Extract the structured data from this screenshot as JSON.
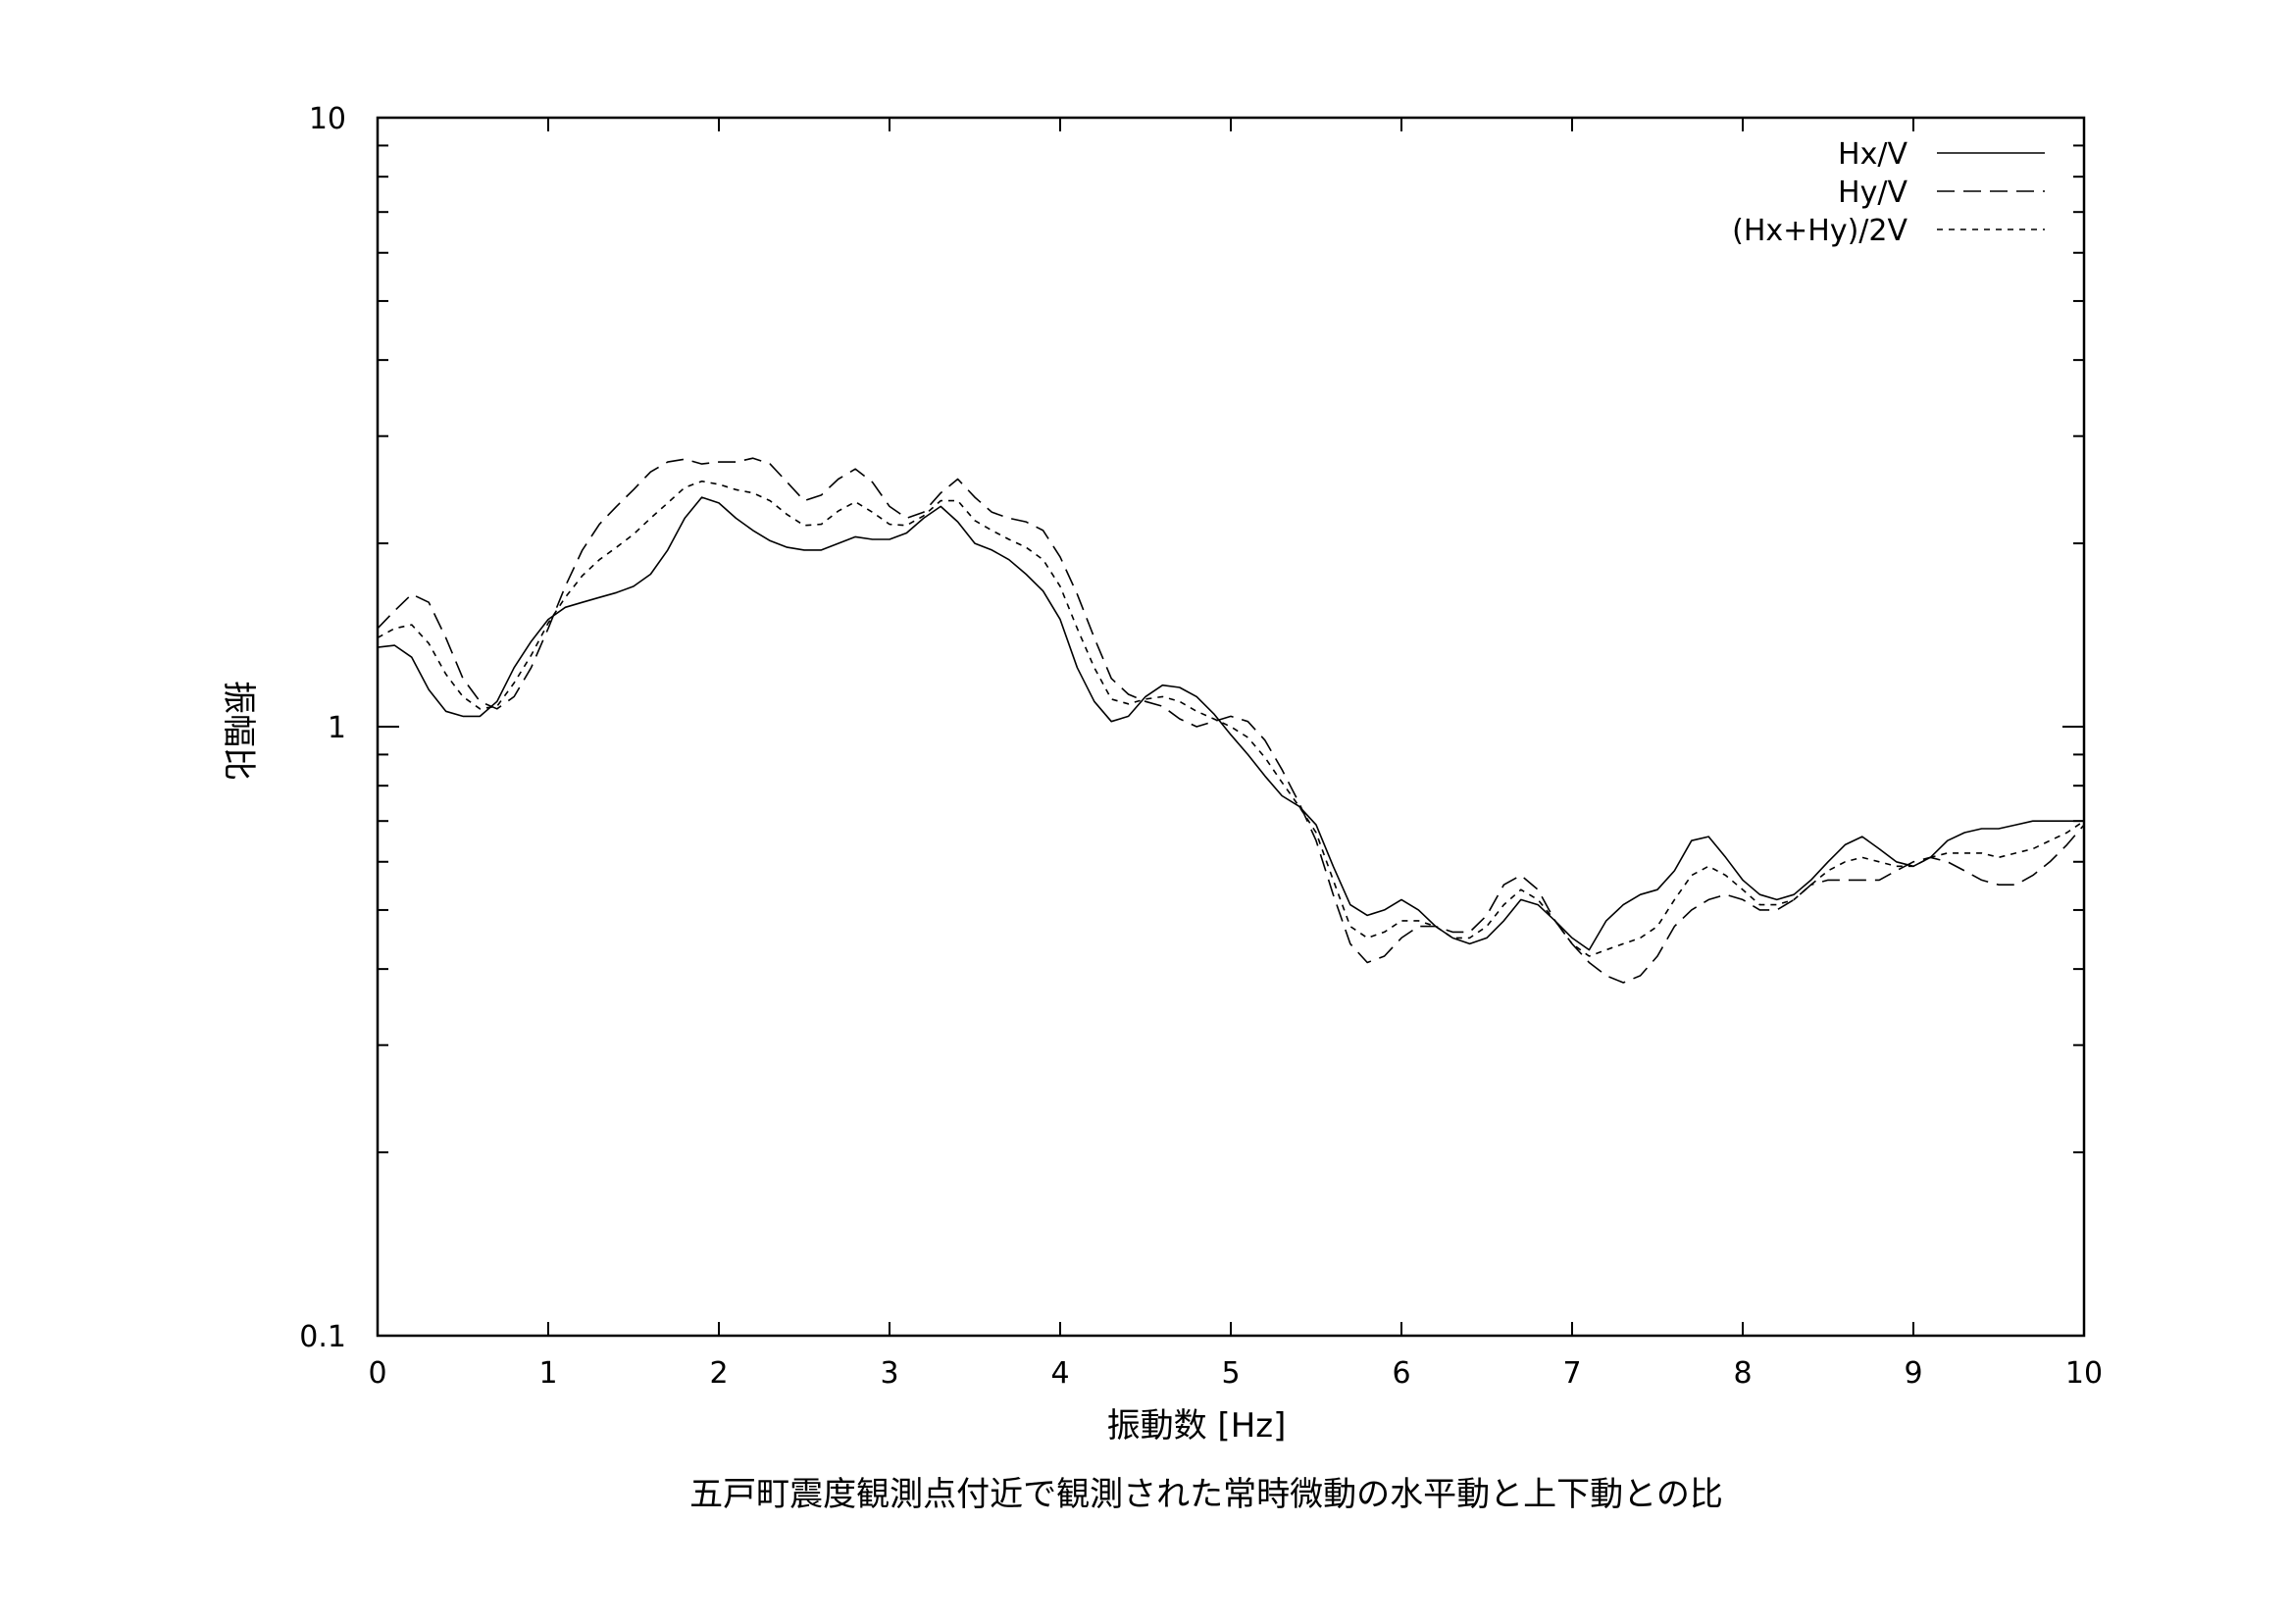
{
  "chart_data": {
    "type": "line",
    "title": "",
    "caption": "五戸町震度観測点付近で観測された常時微動の水平動と上下動との比",
    "xlabel": "振動数 [Hz]",
    "ylabel": "振幅比",
    "xlim": [
      0,
      10
    ],
    "ylim": [
      0.1,
      10
    ],
    "yscale": "log",
    "grid": false,
    "legend_position": "top-right",
    "x_ticks": [
      "0",
      "1",
      "2",
      "3",
      "4",
      "5",
      "6",
      "7",
      "8",
      "9",
      "10"
    ],
    "y_ticks": [
      "0.1",
      "1",
      "10"
    ],
    "x": [
      0.0,
      0.1,
      0.2,
      0.3,
      0.4,
      0.5,
      0.6,
      0.7,
      0.8,
      0.9,
      1.0,
      1.1,
      1.2,
      1.3,
      1.4,
      1.5,
      1.6,
      1.7,
      1.8,
      1.9,
      2.0,
      2.1,
      2.2,
      2.3,
      2.4,
      2.5,
      2.6,
      2.7,
      2.8,
      2.9,
      3.0,
      3.1,
      3.2,
      3.3,
      3.4,
      3.5,
      3.6,
      3.7,
      3.8,
      3.9,
      4.0,
      4.1,
      4.2,
      4.3,
      4.4,
      4.5,
      4.6,
      4.7,
      4.8,
      4.9,
      5.0,
      5.1,
      5.2,
      5.3,
      5.4,
      5.5,
      5.6,
      5.7,
      5.8,
      5.9,
      6.0,
      6.1,
      6.2,
      6.3,
      6.4,
      6.5,
      6.6,
      6.7,
      6.8,
      6.9,
      7.0,
      7.1,
      7.2,
      7.3,
      7.4,
      7.5,
      7.6,
      7.7,
      7.8,
      7.9,
      8.0,
      8.1,
      8.2,
      8.3,
      8.4,
      8.5,
      8.6,
      8.7,
      8.8,
      8.9,
      9.0,
      9.1,
      9.2,
      9.3,
      9.4,
      9.5,
      9.6,
      9.7,
      9.8,
      9.9,
      10.0
    ],
    "series": [
      {
        "name": "Hx/V",
        "dash": "none",
        "values": [
          1.35,
          1.36,
          1.3,
          1.15,
          1.06,
          1.04,
          1.04,
          1.1,
          1.25,
          1.38,
          1.5,
          1.57,
          1.6,
          1.63,
          1.66,
          1.7,
          1.78,
          1.95,
          2.2,
          2.38,
          2.33,
          2.2,
          2.1,
          2.02,
          1.97,
          1.95,
          1.95,
          2.0,
          2.05,
          2.03,
          2.03,
          2.08,
          2.2,
          2.3,
          2.17,
          2.0,
          1.95,
          1.88,
          1.78,
          1.67,
          1.5,
          1.25,
          1.1,
          1.02,
          1.04,
          1.12,
          1.17,
          1.16,
          1.12,
          1.05,
          0.97,
          0.9,
          0.83,
          0.77,
          0.74,
          0.69,
          0.59,
          0.51,
          0.49,
          0.5,
          0.52,
          0.5,
          0.47,
          0.45,
          0.44,
          0.45,
          0.48,
          0.52,
          0.51,
          0.48,
          0.45,
          0.43,
          0.48,
          0.51,
          0.53,
          0.54,
          0.58,
          0.65,
          0.66,
          0.61,
          0.56,
          0.53,
          0.52,
          0.53,
          0.56,
          0.6,
          0.64,
          0.66,
          0.63,
          0.6,
          0.59,
          0.61,
          0.65,
          0.67,
          0.68,
          0.68,
          0.69,
          0.7,
          0.7,
          0.7,
          0.7
        ]
      },
      {
        "name": "Hy/V",
        "dash": "18,9",
        "values": [
          1.45,
          1.55,
          1.65,
          1.6,
          1.4,
          1.2,
          1.1,
          1.07,
          1.12,
          1.25,
          1.45,
          1.7,
          1.95,
          2.15,
          2.3,
          2.45,
          2.62,
          2.72,
          2.75,
          2.7,
          2.72,
          2.72,
          2.76,
          2.7,
          2.52,
          2.35,
          2.4,
          2.55,
          2.65,
          2.52,
          2.3,
          2.2,
          2.25,
          2.42,
          2.55,
          2.38,
          2.25,
          2.2,
          2.17,
          2.1,
          1.9,
          1.65,
          1.4,
          1.2,
          1.13,
          1.1,
          1.08,
          1.03,
          1.0,
          1.02,
          1.04,
          1.02,
          0.95,
          0.85,
          0.75,
          0.65,
          0.53,
          0.44,
          0.41,
          0.42,
          0.45,
          0.47,
          0.47,
          0.46,
          0.46,
          0.49,
          0.55,
          0.57,
          0.54,
          0.48,
          0.44,
          0.41,
          0.39,
          0.38,
          0.39,
          0.42,
          0.47,
          0.5,
          0.52,
          0.53,
          0.52,
          0.5,
          0.5,
          0.52,
          0.55,
          0.56,
          0.56,
          0.56,
          0.56,
          0.58,
          0.6,
          0.61,
          0.6,
          0.58,
          0.56,
          0.55,
          0.55,
          0.57,
          0.6,
          0.64,
          0.69
        ]
      },
      {
        "name": "(Hx+Hy)/2V",
        "dash": "6,6",
        "values": [
          1.4,
          1.45,
          1.47,
          1.37,
          1.22,
          1.12,
          1.07,
          1.08,
          1.18,
          1.31,
          1.48,
          1.63,
          1.77,
          1.88,
          1.97,
          2.07,
          2.2,
          2.33,
          2.47,
          2.53,
          2.5,
          2.45,
          2.42,
          2.35,
          2.23,
          2.14,
          2.15,
          2.26,
          2.34,
          2.25,
          2.15,
          2.14,
          2.22,
          2.35,
          2.35,
          2.18,
          2.1,
          2.03,
          1.97,
          1.88,
          1.7,
          1.45,
          1.25,
          1.11,
          1.09,
          1.11,
          1.12,
          1.1,
          1.06,
          1.03,
          1.0,
          0.96,
          0.89,
          0.81,
          0.74,
          0.67,
          0.56,
          0.47,
          0.45,
          0.46,
          0.48,
          0.48,
          0.47,
          0.45,
          0.45,
          0.47,
          0.51,
          0.54,
          0.52,
          0.48,
          0.44,
          0.42,
          0.43,
          0.44,
          0.45,
          0.47,
          0.52,
          0.57,
          0.59,
          0.57,
          0.54,
          0.51,
          0.51,
          0.52,
          0.55,
          0.58,
          0.6,
          0.61,
          0.6,
          0.59,
          0.59,
          0.61,
          0.62,
          0.62,
          0.62,
          0.61,
          0.62,
          0.63,
          0.65,
          0.67,
          0.7
        ]
      }
    ]
  }
}
